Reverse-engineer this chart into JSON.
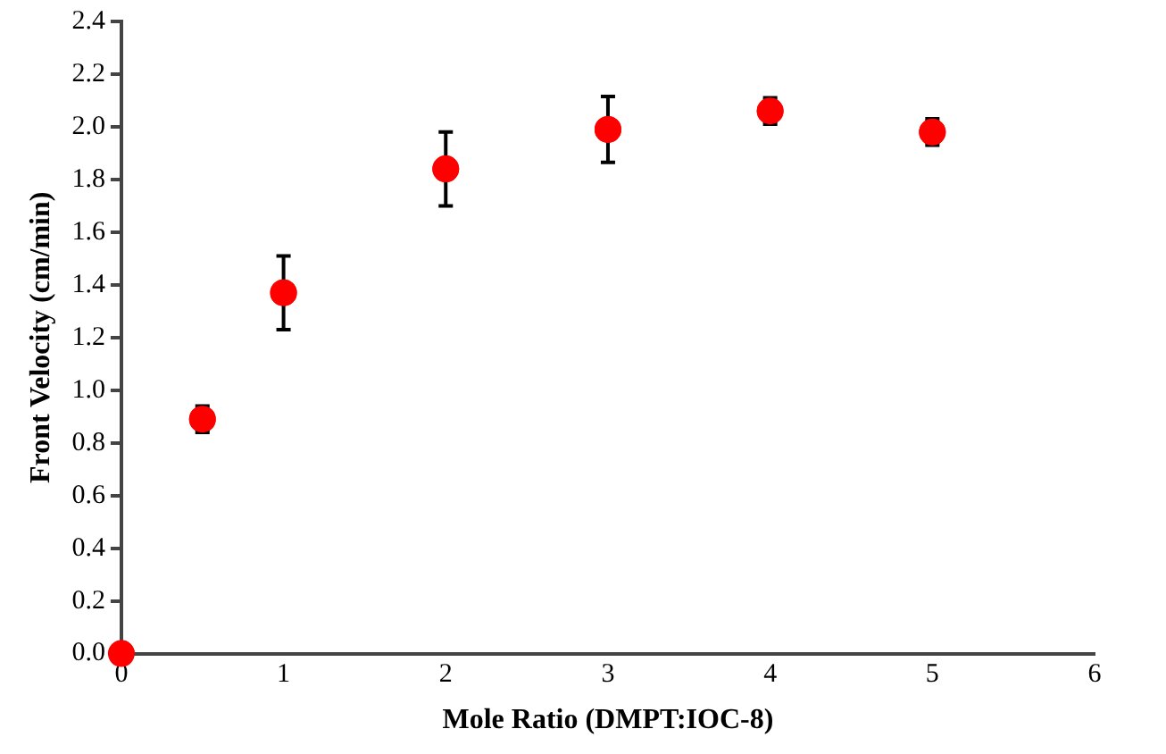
{
  "chart_data": {
    "type": "scatter",
    "xlabel": "Mole Ratio (DMPT:IOC-8)",
    "ylabel": "Front Velocity (cm/min)",
    "x": [
      0,
      0.5,
      1,
      2,
      3,
      4,
      5
    ],
    "values": [
      0,
      0.89,
      1.37,
      1.84,
      1.99,
      2.06,
      1.98
    ],
    "errors": [
      null,
      0.05,
      0.14,
      0.14,
      0.125,
      0.05,
      0.05
    ],
    "color": "#ff0000",
    "marker": "circle",
    "xlim": [
      0,
      6
    ],
    "xticks": [
      0,
      1,
      2,
      3,
      4,
      5,
      6
    ],
    "ylim": [
      0,
      2.4
    ],
    "yticks": [
      {
        "value": 0,
        "label": "0.0"
      },
      {
        "value": 0.2,
        "label": "0.2"
      },
      {
        "value": 0.4,
        "label": "0.4"
      },
      {
        "value": 0.6,
        "label": "0.6"
      },
      {
        "value": 0.8,
        "label": "0.8"
      },
      {
        "value": 1,
        "label": "1.0"
      },
      {
        "value": 1.2,
        "label": "1.2"
      },
      {
        "value": 1.4,
        "label": "1.4"
      },
      {
        "value": 1.6,
        "label": "1.6"
      },
      {
        "value": 1.8,
        "label": "1.8"
      },
      {
        "value": 2,
        "label": "2.0"
      },
      {
        "value": 2.2,
        "label": "2.2"
      },
      {
        "value": 2.4,
        "label": "2.4"
      }
    ],
    "grid": false,
    "legend": false
  }
}
